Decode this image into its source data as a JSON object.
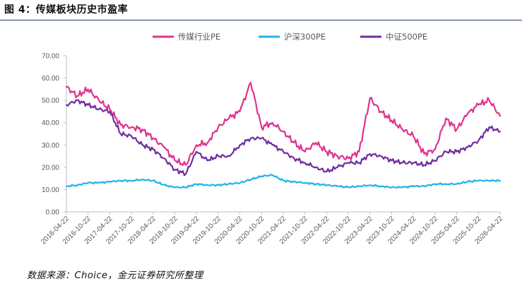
{
  "figure": {
    "title": "图 4：传媒板块历史市盈率",
    "source": "数据来源：Choice，金元证券研究所整理"
  },
  "colors": {
    "media_pe": "#e0338e",
    "csi300_pe": "#1fb4e8",
    "csi500_pe": "#6e2fa0",
    "axis": "#bfbfbf",
    "title_rule": "#1f3b6e"
  },
  "chart_data": {
    "type": "line",
    "title": "",
    "xlabel": "",
    "ylabel": "",
    "ylim": [
      0,
      70
    ],
    "yticks": [
      "0.00",
      "10.00",
      "20.00",
      "30.00",
      "40.00",
      "50.00",
      "60.00",
      "70.00"
    ],
    "xticks": [
      "2016-04-22",
      "2016-10-22",
      "2017-04-22",
      "2017-10-22",
      "2018-04-22",
      "2018-10-22",
      "2019-04-22",
      "2019-10-22",
      "2020-04-22",
      "2020-10-22",
      "2021-04-22",
      "2021-10-22",
      "2022-04-22",
      "2022-10-22",
      "2023-04-22",
      "2023-10-22",
      "2024-04-22",
      "2024-10-22",
      "2025-04-22",
      "2025-10-22",
      "2026-04-22"
    ],
    "grid": false,
    "legend_position": "top",
    "x": [
      "2016-04",
      "2016-07",
      "2016-10",
      "2017-01",
      "2017-04",
      "2017-07",
      "2017-10",
      "2018-01",
      "2018-04",
      "2018-07",
      "2018-10",
      "2019-01",
      "2019-04",
      "2019-07",
      "2019-10",
      "2020-01",
      "2020-04",
      "2020-07",
      "2020-10",
      "2021-01",
      "2021-04",
      "2021-07",
      "2021-10",
      "2022-01",
      "2022-04",
      "2022-07",
      "2022-10",
      "2023-01",
      "2023-04",
      "2023-07",
      "2023-10",
      "2024-01",
      "2024-04",
      "2024-07",
      "2024-10",
      "2025-01",
      "2025-04",
      "2025-07",
      "2025-10",
      "2026-01",
      "2026-04"
    ],
    "series": [
      {
        "name": "传媒行业PE",
        "values": [
          56,
          52,
          55,
          50,
          46,
          39,
          38,
          37,
          33,
          29,
          23,
          21,
          30,
          31,
          38,
          42,
          45,
          58,
          38,
          40,
          36,
          31,
          27,
          31,
          27,
          25,
          24,
          27,
          51,
          45,
          41,
          37,
          34,
          26,
          28,
          42,
          37,
          44,
          48,
          50,
          43
        ]
      },
      {
        "name": "沪深300PE",
        "values": [
          11.5,
          12,
          13,
          13,
          13.5,
          14,
          14,
          14.5,
          14,
          12,
          11,
          11,
          12.5,
          12,
          12,
          12.5,
          13,
          14.5,
          16,
          16.5,
          14,
          13.5,
          13,
          12.5,
          12,
          11.5,
          11,
          11.5,
          12,
          11.5,
          11,
          11,
          11.5,
          11.5,
          12.5,
          12.5,
          12.5,
          13.5,
          14,
          14,
          14
        ]
      },
      {
        "name": "中证500PE",
        "values": [
          48,
          50,
          48,
          46,
          45,
          35,
          34,
          30,
          28,
          24,
          19,
          17,
          27,
          23,
          25,
          25,
          30,
          33,
          33,
          30,
          27,
          24,
          22,
          20,
          18,
          20,
          22,
          22,
          26,
          25,
          23,
          22,
          22,
          21,
          23,
          27,
          27,
          29,
          32,
          38,
          36
        ]
      }
    ]
  }
}
